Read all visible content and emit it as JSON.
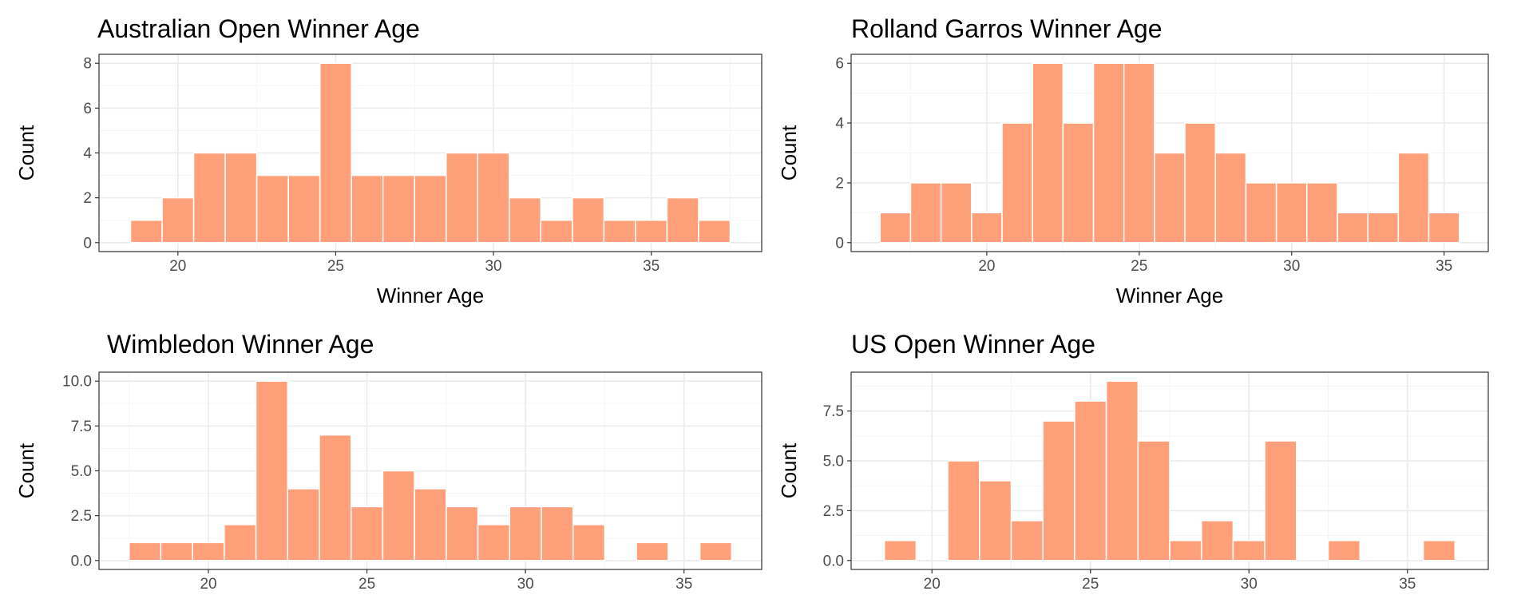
{
  "style": {
    "bar_color": "#FFA07A",
    "bar_edge": "#FFFFFF",
    "grid_major": "#EBEBEB",
    "grid_minor": "#F5F5F5",
    "panel_border": "#333333",
    "text_color": "#000000",
    "tick_text": "#4D4D4D"
  },
  "chart_data": [
    {
      "type": "bar",
      "title": "Australian Open Winner Age",
      "xlabel": "Winner Age",
      "ylabel": "Count",
      "x": [
        19,
        20,
        21,
        22,
        23,
        24,
        25,
        26,
        27,
        28,
        29,
        30,
        31,
        32,
        33,
        34,
        35,
        36,
        37
      ],
      "values": [
        1,
        2,
        4,
        4,
        3,
        3,
        8,
        3,
        3,
        3,
        4,
        4,
        2,
        1,
        2,
        1,
        1,
        2,
        1
      ],
      "xlim": [
        17.5,
        38.5
      ],
      "ylim": [
        -0.4,
        8.4
      ],
      "xticks": [
        20,
        25,
        30,
        35
      ],
      "xtick_labels": [
        "20",
        "25",
        "30",
        "35"
      ],
      "yticks": [
        0,
        2,
        4,
        6,
        8
      ],
      "ytick_labels": [
        "0",
        "2",
        "4",
        "6",
        "8"
      ],
      "grid": true
    },
    {
      "type": "bar",
      "title": "Rolland Garros Winner Age",
      "xlabel": "Winner Age",
      "ylabel": "Count",
      "x": [
        17,
        18,
        19,
        20,
        21,
        22,
        23,
        24,
        25,
        26,
        27,
        28,
        29,
        30,
        31,
        32,
        33,
        34,
        35
      ],
      "values": [
        1,
        2,
        2,
        1,
        4,
        6,
        4,
        6,
        6,
        3,
        4,
        3,
        2,
        2,
        2,
        1,
        1,
        3,
        1
      ],
      "xlim": [
        15.55,
        36.45
      ],
      "ylim": [
        -0.3,
        6.3
      ],
      "xticks": [
        20,
        25,
        30,
        35
      ],
      "xtick_labels": [
        "20",
        "25",
        "30",
        "35"
      ],
      "yticks": [
        0,
        2,
        4,
        6
      ],
      "ytick_labels": [
        "0",
        "2",
        "4",
        "6"
      ],
      "grid": true
    },
    {
      "type": "bar",
      "title": "Wimbledon Winner Age",
      "xlabel": "",
      "ylabel": "Count",
      "x": [
        18,
        19,
        20,
        21,
        22,
        23,
        24,
        25,
        26,
        27,
        28,
        29,
        30,
        31,
        32,
        34,
        36
      ],
      "values": [
        1,
        1,
        1,
        2,
        10,
        4,
        7,
        3,
        5,
        4,
        3,
        2,
        3,
        3,
        2,
        1,
        1
      ],
      "xlim": [
        16.55,
        37.45
      ],
      "ylim": [
        -0.5,
        10.5
      ],
      "xticks": [
        20,
        25,
        30,
        35
      ],
      "xtick_labels": [
        "20",
        "25",
        "30",
        "35"
      ],
      "yticks": [
        0,
        2.5,
        5,
        7.5,
        10
      ],
      "ytick_labels": [
        "0.0",
        "2.5",
        "5.0",
        "7.5",
        "10.0"
      ],
      "grid": true
    },
    {
      "type": "bar",
      "title": "US Open Winner Age",
      "xlabel": "",
      "ylabel": "Count",
      "x": [
        19,
        21,
        22,
        23,
        24,
        25,
        26,
        27,
        28,
        29,
        30,
        31,
        33,
        36
      ],
      "values": [
        1,
        5,
        4,
        2,
        7,
        8,
        9,
        6,
        1,
        2,
        1,
        6,
        1,
        1
      ],
      "xlim": [
        17.45,
        37.55
      ],
      "ylim": [
        -0.45,
        9.45
      ],
      "xticks": [
        20,
        25,
        30,
        35
      ],
      "xtick_labels": [
        "20",
        "25",
        "30",
        "35"
      ],
      "yticks": [
        0,
        2.5,
        5,
        7.5
      ],
      "ytick_labels": [
        "0.0",
        "2.5",
        "5.0",
        "7.5"
      ],
      "grid": true
    }
  ]
}
